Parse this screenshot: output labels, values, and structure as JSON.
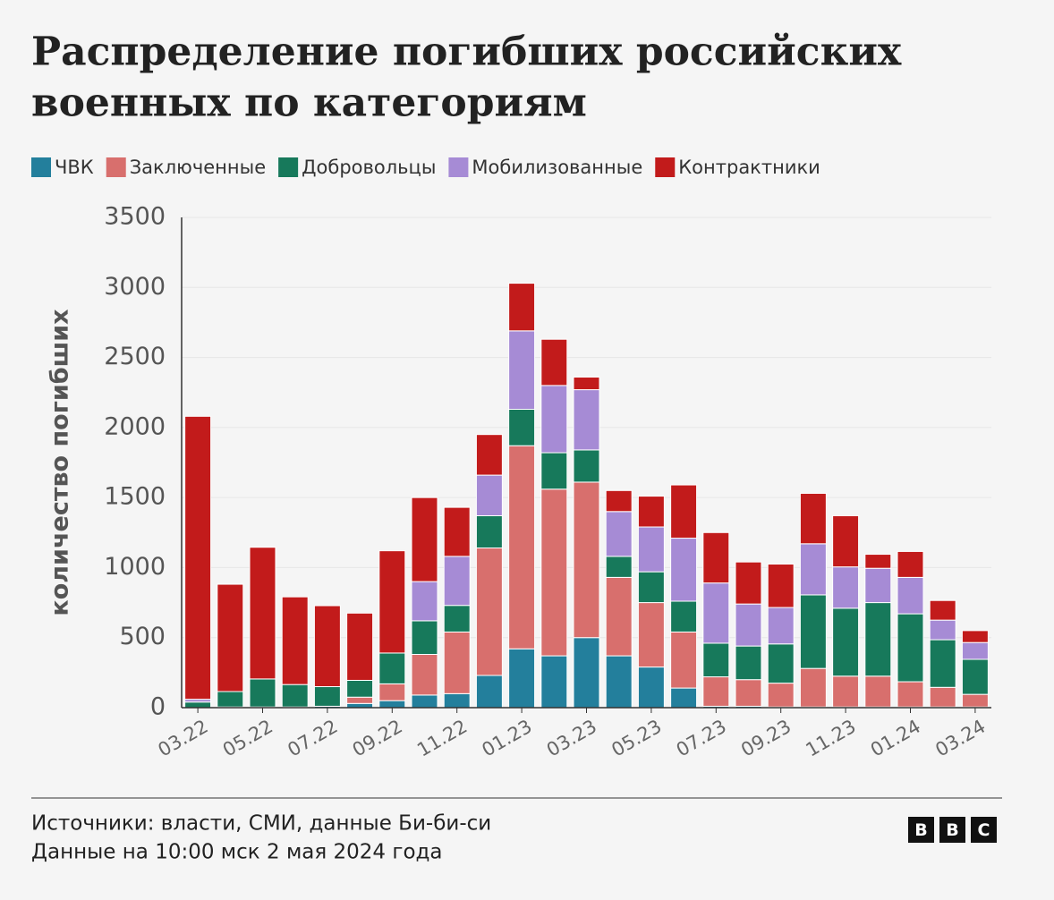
{
  "chart_data": {
    "type": "stacked_bar",
    "title": [
      "Распределение погибших российских",
      "военных по категориям"
    ],
    "y_label": "количество погибших",
    "categories": [
      "03.22",
      null,
      "05.22",
      null,
      "07.22",
      null,
      "09.22",
      null,
      "11.22",
      null,
      "01.23",
      null,
      "03.23",
      null,
      "05.23",
      null,
      "07.23",
      null,
      "09.23",
      null,
      "11.23",
      null,
      "01.24",
      null,
      "03.24"
    ],
    "series": [
      {
        "name": "ЧВК",
        "color": "#237f9c",
        "values": [
          0,
          5,
          5,
          5,
          10,
          30,
          50,
          90,
          100,
          230,
          420,
          370,
          500,
          370,
          290,
          140,
          10,
          10,
          5,
          5,
          5,
          5,
          5,
          5,
          5
        ]
      },
      {
        "name": "Заключенные",
        "color": "#d86f6d",
        "values": [
          0,
          0,
          0,
          0,
          0,
          45,
          120,
          290,
          440,
          910,
          1450,
          1190,
          1110,
          560,
          460,
          400,
          210,
          190,
          170,
          275,
          220,
          220,
          180,
          140,
          90
        ]
      },
      {
        "name": "Добровольцы",
        "color": "#17795b",
        "values": [
          40,
          110,
          200,
          160,
          140,
          120,
          220,
          240,
          190,
          230,
          260,
          260,
          230,
          150,
          220,
          220,
          240,
          240,
          280,
          525,
          485,
          525,
          485,
          340,
          250
        ]
      },
      {
        "name": "Мобилизованные",
        "color": "#a68bd5",
        "values": [
          20,
          0,
          0,
          0,
          0,
          0,
          0,
          280,
          350,
          290,
          560,
          480,
          430,
          320,
          320,
          450,
          430,
          300,
          260,
          365,
          295,
          245,
          260,
          140,
          120
        ]
      },
      {
        "name": "Контрактники",
        "color": "#c21b1b",
        "values": [
          2020,
          766,
          940,
          626,
          578,
          480,
          730,
          600,
          350,
          290,
          340,
          330,
          90,
          150,
          220,
          380,
          360,
          300,
          310,
          360,
          365,
          100,
          185,
          140,
          85
        ]
      }
    ],
    "ylim": [
      0,
      3500
    ],
    "yticks": [
      0,
      500,
      1000,
      1500,
      2000,
      2500,
      3000,
      3500
    ],
    "grid": true
  },
  "footer": {
    "source": "Источники: власти, СМИ, данные Би-би-си",
    "date_note": "Данные на 10:00 мск 2 мая 2024 года",
    "logo": [
      "B",
      "B",
      "C"
    ]
  }
}
